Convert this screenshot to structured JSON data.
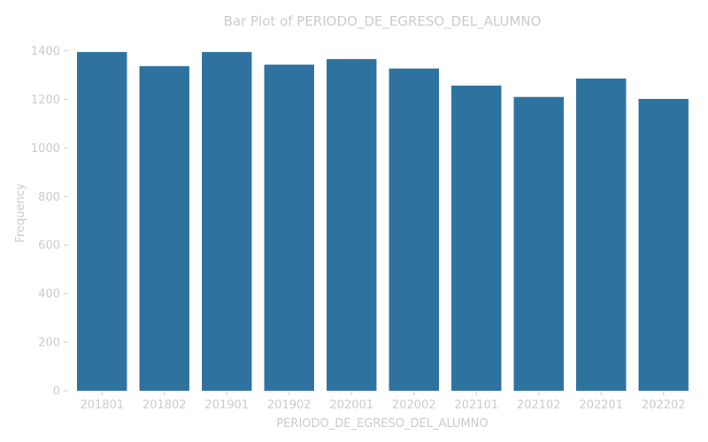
{
  "chart_data": {
    "type": "bar",
    "title": "Bar Plot of PERIODO_DE_EGRESO_DEL_ALUMNO",
    "xlabel": "PERIODO_DE_EGRESO_DEL_ALUMNO",
    "ylabel": "Frequency",
    "categories": [
      "201801",
      "201802",
      "201901",
      "201902",
      "202001",
      "202002",
      "202101",
      "202102",
      "202201",
      "202202"
    ],
    "values": [
      1395,
      1337,
      1395,
      1343,
      1366,
      1327,
      1257,
      1210,
      1286,
      1202
    ],
    "ylim": [
      0,
      1400
    ],
    "yticks": [
      "0",
      "200",
      "400",
      "600",
      "800",
      "1000",
      "1200",
      "1400"
    ],
    "grid": false,
    "bar_color": "#2e72a0",
    "text_color": "#cccccc"
  }
}
